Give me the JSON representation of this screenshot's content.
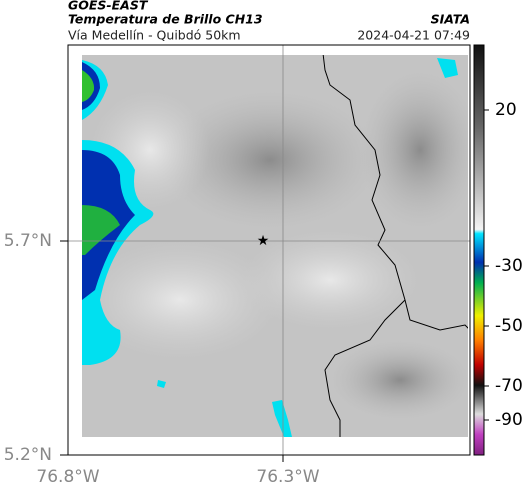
{
  "header": {
    "title": "GOES-EAST",
    "subtitle": "Temperatura de Brillo CH13",
    "region": "Vía Medellín - Quibdó 50km",
    "source": "SIATA",
    "datetime": "2024-04-21 07:49"
  },
  "axes": {
    "x_ticks": [
      "76.8°W",
      "76.3°W"
    ],
    "y_ticks": [
      "5.7°N",
      "5.2°N"
    ]
  },
  "colorbar": {
    "ticks": [
      "20",
      "-30",
      "-50",
      "-70",
      "-90"
    ]
  }
}
